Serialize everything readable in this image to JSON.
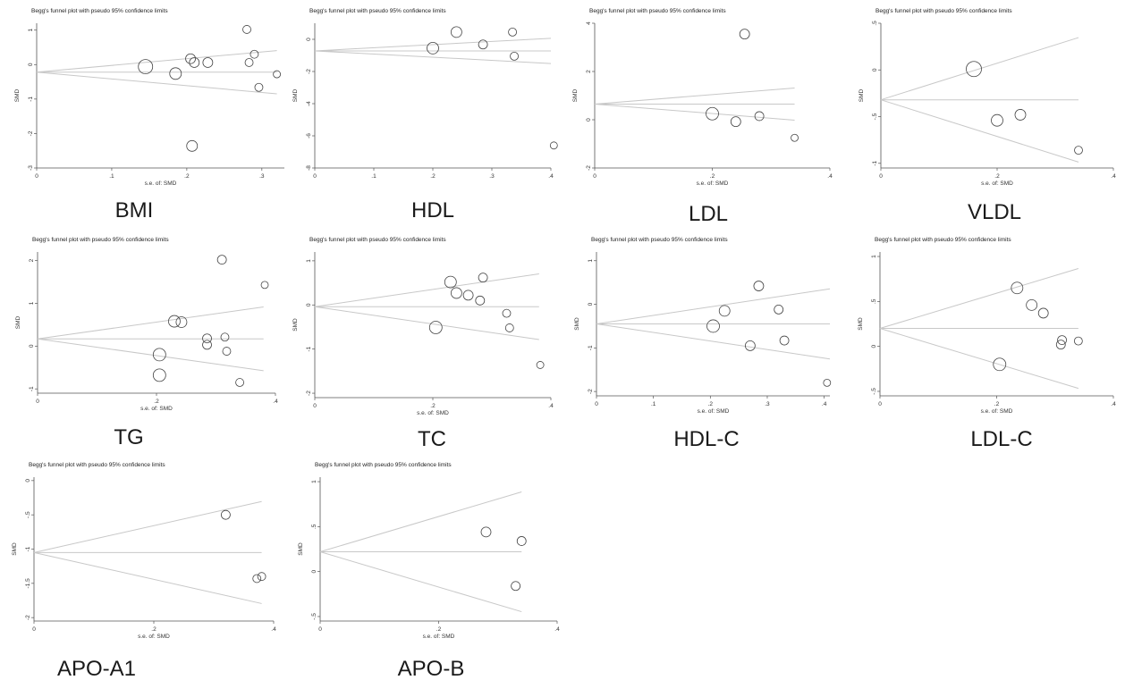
{
  "figure": {
    "panels": [
      {
        "label": "BMI"
      },
      {
        "label": "HDL"
      },
      {
        "label": "LDL"
      },
      {
        "label": "VLDL"
      },
      {
        "label": "TG"
      },
      {
        "label": "TC"
      },
      {
        "label": "HDL-C"
      },
      {
        "label": "LDL-C"
      },
      {
        "label": "APO-A1"
      },
      {
        "label": "APO-B"
      }
    ]
  },
  "chart_data": [
    {
      "type": "scatter",
      "name": "BMI",
      "title": "Begg's funnel plot with pseudo 95% confidence limits",
      "xlabel": "s.e. of: SMD",
      "ylabel": "SMD",
      "xlim": [
        0,
        0.33
      ],
      "ylim": [
        -3,
        1.2
      ],
      "xticks": [
        0,
        0.1,
        0.2,
        0.3
      ],
      "xtick_labels": [
        "0",
        ".1",
        ".2",
        ".3"
      ],
      "yticks": [
        1,
        0,
        -1,
        -2,
        -3
      ],
      "ytick_labels": [
        "1",
        "0",
        "-1",
        "-2",
        "-3"
      ],
      "pooled": -0.22,
      "ci_end": 0.32,
      "points": [
        {
          "x": 0.145,
          "y": -0.06,
          "r": 8
        },
        {
          "x": 0.185,
          "y": -0.26,
          "r": 6.5
        },
        {
          "x": 0.205,
          "y": 0.17,
          "r": 5.5
        },
        {
          "x": 0.21,
          "y": 0.06,
          "r": 5.5
        },
        {
          "x": 0.228,
          "y": 0.06,
          "r": 5.5
        },
        {
          "x": 0.207,
          "y": -2.36,
          "r": 6
        },
        {
          "x": 0.28,
          "y": 1.02,
          "r": 4.5
        },
        {
          "x": 0.283,
          "y": 0.06,
          "r": 4.5
        },
        {
          "x": 0.29,
          "y": 0.3,
          "r": 4.5
        },
        {
          "x": 0.296,
          "y": -0.66,
          "r": 4.5
        },
        {
          "x": 0.32,
          "y": -0.28,
          "r": 4
        }
      ]
    },
    {
      "type": "scatter",
      "name": "HDL",
      "title": "Begg's funnel plot with pseudo 95% confidence limits",
      "xlabel": "",
      "ylabel": "SMD",
      "xlim": [
        0,
        0.4
      ],
      "ylim": [
        -8,
        1
      ],
      "xticks": [
        0,
        0.1,
        0.2,
        0.3,
        0.4
      ],
      "xtick_labels": [
        "0",
        ".1",
        ".2",
        ".3",
        ".4"
      ],
      "yticks": [
        0,
        -2,
        -4,
        -6,
        -8
      ],
      "ytick_labels": [
        "0",
        "-2",
        "-4",
        "-6",
        "-8"
      ],
      "pooled": -0.72,
      "ci_end": 0.4,
      "points": [
        {
          "x": 0.2,
          "y": -0.55,
          "r": 6.5
        },
        {
          "x": 0.24,
          "y": 0.45,
          "r": 6
        },
        {
          "x": 0.285,
          "y": -0.32,
          "r": 5
        },
        {
          "x": 0.335,
          "y": 0.45,
          "r": 4.5
        },
        {
          "x": 0.338,
          "y": -1.05,
          "r": 4.5
        },
        {
          "x": 0.405,
          "y": -6.6,
          "r": 4
        }
      ]
    },
    {
      "type": "scatter",
      "name": "LDL",
      "title": "Begg's funnel plot with pseudo 95% confidence limits",
      "xlabel": "s.e. of: SMD",
      "ylabel": "SMD",
      "xlim": [
        0,
        0.4
      ],
      "ylim": [
        -2,
        4
      ],
      "xticks": [
        0,
        0.2,
        0.4
      ],
      "xtick_labels": [
        "0",
        ".2",
        ".4"
      ],
      "yticks": [
        4,
        2,
        0,
        -2
      ],
      "ytick_labels": [
        "4",
        "2",
        "0",
        "-2"
      ],
      "pooled": 0.65,
      "ci_end": 0.34,
      "points": [
        {
          "x": 0.2,
          "y": 0.25,
          "r": 7
        },
        {
          "x": 0.24,
          "y": -0.08,
          "r": 5.5
        },
        {
          "x": 0.255,
          "y": 3.55,
          "r": 5.5
        },
        {
          "x": 0.28,
          "y": 0.15,
          "r": 5
        },
        {
          "x": 0.34,
          "y": -0.75,
          "r": 4
        }
      ]
    },
    {
      "type": "scatter",
      "name": "VLDL",
      "title": "Begg's funnel plot with pseudo 95% confidence limits",
      "xlabel": "s.e. of: SMD",
      "ylabel": "SMD",
      "xlim": [
        0,
        0.4
      ],
      "ylim": [
        -1.05,
        0.5
      ],
      "xticks": [
        0,
        0.2,
        0.4
      ],
      "xtick_labels": [
        "0",
        ".2",
        ".4"
      ],
      "yticks": [
        0.5,
        0,
        -0.5,
        -1
      ],
      "ytick_labels": [
        ".5",
        "0",
        "-.5",
        "-1"
      ],
      "pooled": -0.32,
      "ci_end": 0.34,
      "points": [
        {
          "x": 0.16,
          "y": 0.01,
          "r": 8.5
        },
        {
          "x": 0.2,
          "y": -0.54,
          "r": 6.5
        },
        {
          "x": 0.24,
          "y": -0.48,
          "r": 6
        },
        {
          "x": 0.34,
          "y": -0.86,
          "r": 4.5
        }
      ]
    },
    {
      "type": "scatter",
      "name": "TG",
      "title": "Begg's funnel plot with pseudo 95% confidence limits",
      "xlabel": "s.e. of: SMD",
      "ylabel": "SMD",
      "xlim": [
        0,
        0.4
      ],
      "ylim": [
        -1.1,
        2.2
      ],
      "xticks": [
        0,
        0.2,
        0.4
      ],
      "xtick_labels": [
        "0",
        ".2",
        ".4"
      ],
      "yticks": [
        2,
        1,
        0,
        -1
      ],
      "ytick_labels": [
        "2",
        "1",
        "0",
        "-1"
      ],
      "pooled": 0.17,
      "ci_end": 0.38,
      "points": [
        {
          "x": 0.205,
          "y": -0.2,
          "r": 7
        },
        {
          "x": 0.205,
          "y": -0.68,
          "r": 7
        },
        {
          "x": 0.23,
          "y": 0.58,
          "r": 6.5
        },
        {
          "x": 0.242,
          "y": 0.56,
          "r": 6
        },
        {
          "x": 0.285,
          "y": 0.18,
          "r": 5
        },
        {
          "x": 0.285,
          "y": 0.03,
          "r": 5
        },
        {
          "x": 0.31,
          "y": 2.02,
          "r": 5
        },
        {
          "x": 0.315,
          "y": 0.21,
          "r": 4.5
        },
        {
          "x": 0.318,
          "y": -0.12,
          "r": 4.5
        },
        {
          "x": 0.34,
          "y": -0.85,
          "r": 4.5
        },
        {
          "x": 0.382,
          "y": 1.43,
          "r": 4
        }
      ]
    },
    {
      "type": "scatter",
      "name": "TC",
      "title": "Begg's funnel plot with pseudo 95% confidence limits",
      "xlabel": "s.e. of: SMD",
      "ylabel": "SMD",
      "xlim": [
        0,
        0.4
      ],
      "ylim": [
        -2.1,
        1.2
      ],
      "xticks": [
        0,
        0.2,
        0.4
      ],
      "xtick_labels": [
        "0",
        ".2",
        ".4"
      ],
      "yticks": [
        1,
        0,
        -1,
        -2
      ],
      "ytick_labels": [
        "1",
        "0",
        "-1",
        "-2"
      ],
      "pooled": -0.04,
      "ci_end": 0.38,
      "points": [
        {
          "x": 0.205,
          "y": -0.51,
          "r": 7
        },
        {
          "x": 0.23,
          "y": 0.52,
          "r": 6.5
        },
        {
          "x": 0.24,
          "y": 0.27,
          "r": 6
        },
        {
          "x": 0.26,
          "y": 0.22,
          "r": 5.5
        },
        {
          "x": 0.28,
          "y": 0.1,
          "r": 5
        },
        {
          "x": 0.285,
          "y": 0.62,
          "r": 5
        },
        {
          "x": 0.325,
          "y": -0.19,
          "r": 4.5
        },
        {
          "x": 0.33,
          "y": -0.52,
          "r": 4.5
        },
        {
          "x": 0.382,
          "y": -1.36,
          "r": 4
        }
      ]
    },
    {
      "type": "scatter",
      "name": "HDL-C",
      "title": "Begg's funnel plot with pseudo 95% confidence limits",
      "xlabel": "s.e. of: SMD",
      "ylabel": "SMD",
      "xlim": [
        0,
        0.41
      ],
      "ylim": [
        -2.1,
        1.2
      ],
      "xticks": [
        0,
        0.1,
        0.2,
        0.3,
        0.4
      ],
      "xtick_labels": [
        "0",
        ".1",
        ".2",
        ".3",
        ".4"
      ],
      "yticks": [
        1,
        0,
        -1,
        -2
      ],
      "ytick_labels": [
        "1",
        "0",
        "-1",
        "-2"
      ],
      "pooled": -0.45,
      "ci_end": 0.41,
      "points": [
        {
          "x": 0.205,
          "y": -0.5,
          "r": 7
        },
        {
          "x": 0.225,
          "y": -0.15,
          "r": 6
        },
        {
          "x": 0.27,
          "y": -0.95,
          "r": 5.5
        },
        {
          "x": 0.285,
          "y": 0.42,
          "r": 5.5
        },
        {
          "x": 0.32,
          "y": -0.12,
          "r": 5
        },
        {
          "x": 0.33,
          "y": -0.83,
          "r": 5
        },
        {
          "x": 0.405,
          "y": -1.8,
          "r": 4
        }
      ]
    },
    {
      "type": "scatter",
      "name": "LDL-C",
      "title": "Begg's funnel plot with pseudo 95% confidence limits",
      "xlabel": "s.e. of: SMD",
      "ylabel": "SMD",
      "xlim": [
        0,
        0.4
      ],
      "ylim": [
        -0.55,
        1.05
      ],
      "xticks": [
        0,
        0.2,
        0.4
      ],
      "xtick_labels": [
        "0",
        ".2",
        ".4"
      ],
      "yticks": [
        1,
        0.5,
        0,
        -0.5
      ],
      "ytick_labels": [
        "1",
        ".5",
        "0",
        "-.5"
      ],
      "pooled": 0.2,
      "ci_end": 0.34,
      "points": [
        {
          "x": 0.205,
          "y": -0.2,
          "r": 7
        },
        {
          "x": 0.235,
          "y": 0.65,
          "r": 6.5
        },
        {
          "x": 0.26,
          "y": 0.46,
          "r": 6
        },
        {
          "x": 0.28,
          "y": 0.37,
          "r": 5.5
        },
        {
          "x": 0.31,
          "y": 0.02,
          "r": 5
        },
        {
          "x": 0.312,
          "y": 0.07,
          "r": 5
        },
        {
          "x": 0.34,
          "y": 0.06,
          "r": 4.5
        }
      ]
    },
    {
      "type": "scatter",
      "name": "APO-A1",
      "title": "Begg's funnel plot with pseudo 95% confidence limits",
      "xlabel": "s.e. of: SMD",
      "ylabel": "SMD",
      "xlim": [
        0,
        0.4
      ],
      "ylim": [
        -2.05,
        0.05
      ],
      "xticks": [
        0,
        0.2,
        0.4
      ],
      "xtick_labels": [
        "0",
        ".2",
        ".4"
      ],
      "yticks": [
        0,
        -0.5,
        -1,
        -1.5,
        -2
      ],
      "ytick_labels": [
        "0",
        "-.5",
        "-1",
        "-1.5",
        "-2"
      ],
      "pooled": -1.05,
      "ci_end": 0.38,
      "points": [
        {
          "x": 0.32,
          "y": -0.5,
          "r": 5
        },
        {
          "x": 0.372,
          "y": -1.43,
          "r": 4.5
        },
        {
          "x": 0.38,
          "y": -1.4,
          "r": 4.5
        }
      ]
    },
    {
      "type": "scatter",
      "name": "APO-B",
      "title": "Begg's funnel plot with pseudo 95% confidence limits",
      "xlabel": "s.e. of: SMD",
      "ylabel": "SMD",
      "xlim": [
        0,
        0.4
      ],
      "ylim": [
        -0.55,
        1.05
      ],
      "xticks": [
        0,
        0.2,
        0.4
      ],
      "xtick_labels": [
        "0",
        ".2",
        ".4"
      ],
      "yticks": [
        1,
        0.5,
        0,
        -0.5
      ],
      "ytick_labels": [
        "1",
        ".5",
        "0",
        "-.5"
      ],
      "pooled": 0.22,
      "ci_end": 0.34,
      "points": [
        {
          "x": 0.28,
          "y": 0.44,
          "r": 5.5
        },
        {
          "x": 0.33,
          "y": -0.16,
          "r": 5
        },
        {
          "x": 0.34,
          "y": 0.34,
          "r": 5
        }
      ]
    }
  ]
}
